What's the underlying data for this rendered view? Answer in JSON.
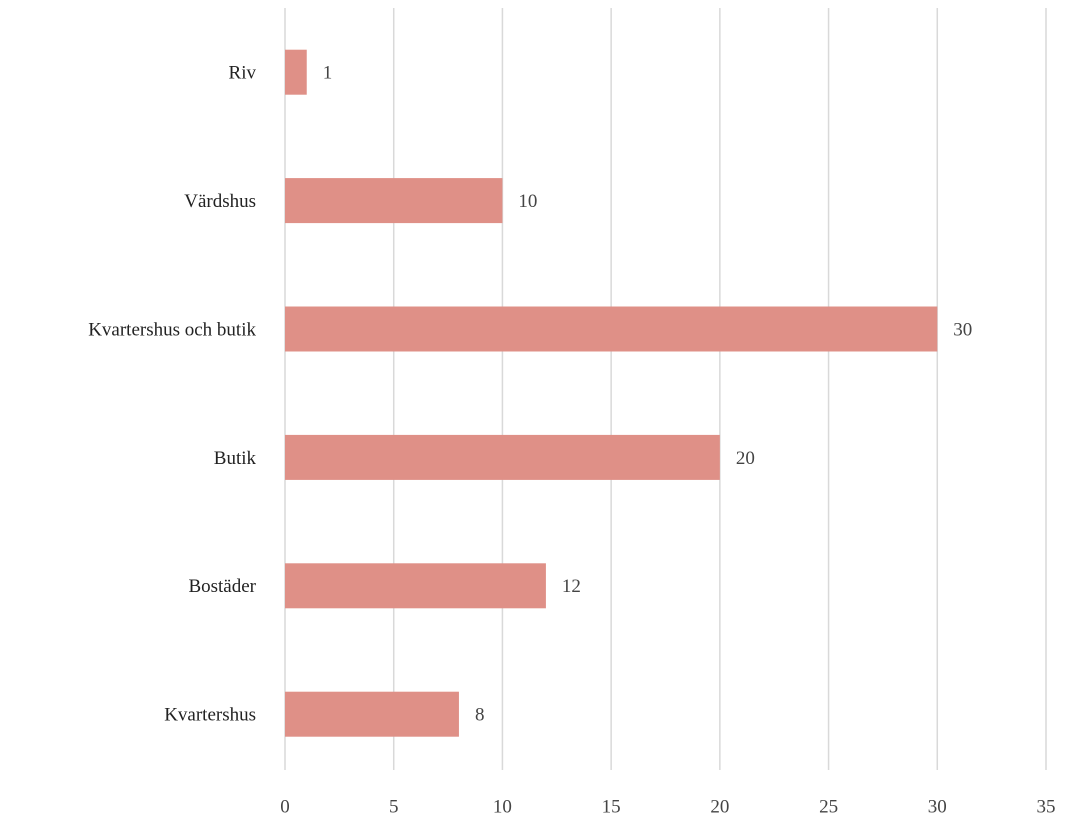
{
  "chart_data": {
    "type": "bar",
    "orientation": "horizontal",
    "categories": [
      "Riv",
      "Värdshus",
      "Kvartershus och butik",
      "Butik",
      "Bostäder",
      "Kvartershus"
    ],
    "values": [
      1,
      10,
      30,
      20,
      12,
      8
    ],
    "color": "#df9087",
    "xlim": [
      0,
      35
    ],
    "xticks": [
      0,
      5,
      10,
      15,
      20,
      25,
      30,
      35
    ],
    "grid": true
  }
}
